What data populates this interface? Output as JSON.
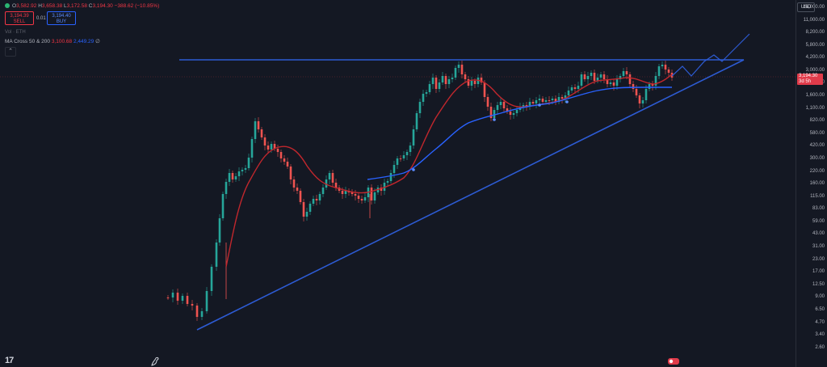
{
  "legend": {
    "ohlc": {
      "o_label": "O",
      "o": "3,582.92",
      "h_label": "H",
      "h": "3,658.38",
      "l_label": "L",
      "l": "3,172.58",
      "c_label": "C",
      "c": "3,194.30",
      "change": "−388.62 (−10.85%)"
    },
    "sell": {
      "price": "3,194.39",
      "label": "SELL"
    },
    "spread": "0.01",
    "buy": {
      "price": "3,194.40",
      "label": "BUY"
    },
    "volume": "Vol · ETH",
    "indicator": {
      "name": "MA Cross 50 & 200",
      "ma_fast": "3,100.68",
      "ma_slow": "2,449.29",
      "settings_symbol": "∅"
    }
  },
  "price_scale": {
    "currency": "USD",
    "ticks": [
      "16,000.00",
      "11,000.00",
      "8,200.00",
      "5,800.00",
      "4,200.00",
      "3,000.00",
      "2,200.00",
      "1,600.00",
      "1,100.00",
      "820.00",
      "580.00",
      "420.00",
      "300.00",
      "220.00",
      "160.00",
      "115.00",
      "83.00",
      "59.00",
      "43.00",
      "31.00",
      "23.00",
      "17.00",
      "12.50",
      "9.00",
      "6.50",
      "4.70",
      "3.40",
      "2.60"
    ],
    "last_price": "3,194.30",
    "countdown": "3d 5h"
  },
  "colors": {
    "background": "#141823",
    "up": "#26a69a",
    "down": "#ef5350",
    "ma_fast": "#c1272d",
    "ma_slow": "#2962ff",
    "trendline": "#2d5bd3"
  },
  "icons": {
    "logo": "tradingview-logo-icon",
    "bird": "bird-icon",
    "flag": "flag-icon",
    "collapse": "chevron-up-icon"
  }
}
